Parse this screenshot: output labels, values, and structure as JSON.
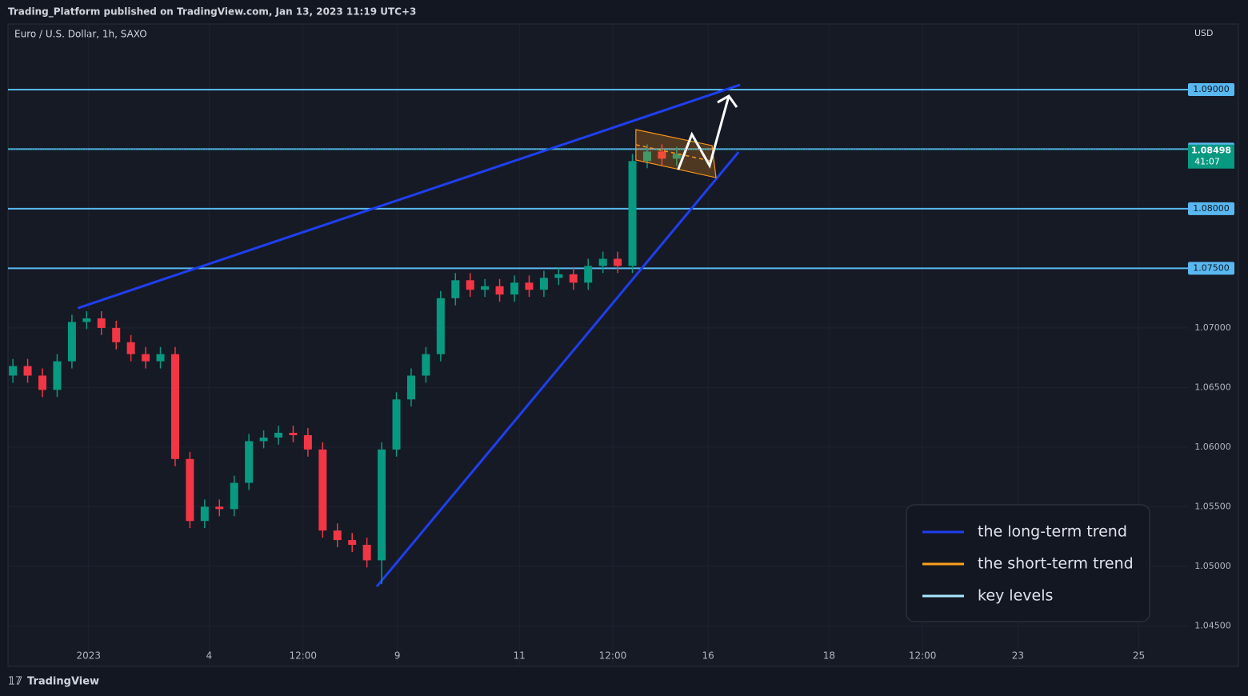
{
  "chart_data": {
    "type": "candlestick",
    "header": "Trading_Platform published on TradingView.com, Jan 13, 2023 11:19 UTC+3",
    "title": "Euro / U.S. Dollar, 1h, SAXO",
    "currency": "USD",
    "brand": "TradingView",
    "up_color": "#089981",
    "down_color": "#f23645",
    "x": [
      1,
      4,
      7,
      10,
      13,
      16,
      19,
      22,
      25,
      28,
      31,
      34,
      37,
      40,
      43,
      46,
      49,
      52,
      55,
      58,
      61,
      64,
      67,
      70,
      73,
      76,
      79,
      82,
      85,
      88,
      91,
      94,
      97,
      100,
      103,
      106,
      109,
      112,
      115,
      118,
      121,
      124,
      127,
      130,
      133,
      136
    ],
    "open": [
      1.066,
      1.0668,
      1.066,
      1.0648,
      1.0672,
      1.0705,
      1.0708,
      1.07,
      1.0688,
      1.0678,
      1.0672,
      1.0678,
      1.059,
      1.0538,
      1.055,
      1.0548,
      1.057,
      1.0605,
      1.0608,
      1.0612,
      1.061,
      1.0598,
      1.053,
      1.0522,
      1.0518,
      1.0505,
      1.0598,
      1.064,
      1.066,
      1.0678,
      1.0725,
      1.074,
      1.0732,
      1.0735,
      1.0728,
      1.0738,
      1.0732,
      1.0742,
      1.0745,
      1.0738,
      1.0752,
      1.0758,
      1.0752,
      1.084,
      1.0848,
      1.0842
    ],
    "high": [
      1.0674,
      1.0674,
      1.0666,
      1.0678,
      1.0711,
      1.0714,
      1.0714,
      1.0706,
      1.0694,
      1.0684,
      1.0684,
      1.0684,
      1.0596,
      1.0556,
      1.0556,
      1.0576,
      1.0611,
      1.0614,
      1.0618,
      1.0618,
      1.0616,
      1.0604,
      1.0536,
      1.0528,
      1.0524,
      1.0604,
      1.0646,
      1.0666,
      1.0684,
      1.0731,
      1.0746,
      1.0746,
      1.0741,
      1.0741,
      1.0744,
      1.0744,
      1.0748,
      1.0751,
      1.0751,
      1.0758,
      1.0764,
      1.0764,
      1.0846,
      1.0854,
      1.0854,
      1.0852
    ],
    "low": [
      1.0654,
      1.0654,
      1.0642,
      1.0642,
      1.0666,
      1.0699,
      1.0694,
      1.0682,
      1.0672,
      1.0666,
      1.0666,
      1.0584,
      1.0532,
      1.0532,
      1.0542,
      1.0542,
      1.0564,
      1.0599,
      1.0602,
      1.0604,
      1.0592,
      1.0524,
      1.0516,
      1.0512,
      1.0499,
      1.0485,
      1.0592,
      1.0634,
      1.0654,
      1.0672,
      1.0719,
      1.0726,
      1.0726,
      1.0722,
      1.0722,
      1.0726,
      1.0726,
      1.0736,
      1.0732,
      1.0732,
      1.0746,
      1.0746,
      1.0746,
      1.0834,
      1.0836,
      1.0836
    ],
    "close": [
      1.0668,
      1.066,
      1.0648,
      1.0672,
      1.0705,
      1.0708,
      1.07,
      1.0688,
      1.0678,
      1.0672,
      1.0678,
      1.059,
      1.0538,
      1.055,
      1.0548,
      1.057,
      1.0605,
      1.0608,
      1.0612,
      1.061,
      1.0598,
      1.053,
      1.0522,
      1.0518,
      1.0505,
      1.0598,
      1.064,
      1.066,
      1.0678,
      1.0725,
      1.074,
      1.0732,
      1.0735,
      1.0728,
      1.0738,
      1.0732,
      1.0742,
      1.0745,
      1.0738,
      1.0752,
      1.0758,
      1.0752,
      1.084,
      1.0848,
      1.0842,
      1.0846
    ],
    "xlim": [
      0,
      240
    ],
    "xticks": [
      {
        "value": 16.4,
        "label": "2023"
      },
      {
        "value": 40.9,
        "label": "4"
      },
      {
        "value": 60,
        "label": "12:00"
      },
      {
        "value": 79.2,
        "label": "9"
      },
      {
        "value": 104,
        "label": "11"
      },
      {
        "value": 123,
        "label": "12:00"
      },
      {
        "value": 142.4,
        "label": "16"
      },
      {
        "value": 167,
        "label": "18"
      },
      {
        "value": 186,
        "label": "12:00"
      },
      {
        "value": 205.4,
        "label": "23"
      },
      {
        "value": 230,
        "label": "25"
      }
    ],
    "ylim": [
      1.0416,
      1.0955
    ],
    "yticks": [
      {
        "value": 1.045,
        "label": "1.04500"
      },
      {
        "value": 1.05,
        "label": "1.05000"
      },
      {
        "value": 1.055,
        "label": "1.05500"
      },
      {
        "value": 1.06,
        "label": "1.06000"
      },
      {
        "value": 1.065,
        "label": "1.06500"
      },
      {
        "value": 1.07,
        "label": "1.07000"
      }
    ],
    "grid": true,
    "levels": [
      {
        "value": 1.09,
        "label": "1.09000"
      },
      {
        "value": 1.085,
        "label": "1.08500"
      },
      {
        "value": 1.08,
        "label": "1.08000"
      },
      {
        "value": 1.075,
        "label": "1.07500"
      }
    ],
    "level_color": "#5ab8f0",
    "last_price": {
      "value": 1.08498,
      "label": "1.08498"
    },
    "countdown": "41:07",
    "trend_lines": [
      {
        "x": [
          14.2,
          148.9
        ],
        "y": [
          1.07166,
          1.0904
        ]
      },
      {
        "x": [
          75.0,
          148.6
        ],
        "y": [
          1.0483,
          1.08476
        ]
      }
    ],
    "trend_color": "#1f3ff0",
    "channel": {
      "x": [
        127.7,
        143.2,
        144.0,
        127.7
      ],
      "y": [
        1.08664,
        1.0853,
        1.08261,
        1.08409
      ]
    },
    "channel_color": "#f7931a",
    "projection": {
      "x": [
        136.3,
        139.1,
        142.7,
        146.6
      ],
      "y": [
        1.08328,
        1.08624,
        1.08362,
        1.08946
      ]
    },
    "legend": {
      "position": "bottom-right",
      "items": [
        {
          "name": "the long-term trend",
          "color": "#1f3ff0"
        },
        {
          "name": "the short-term trend",
          "color": "#ff9f1a"
        },
        {
          "name": "key levels",
          "color": "#a8e6ff"
        }
      ]
    }
  }
}
